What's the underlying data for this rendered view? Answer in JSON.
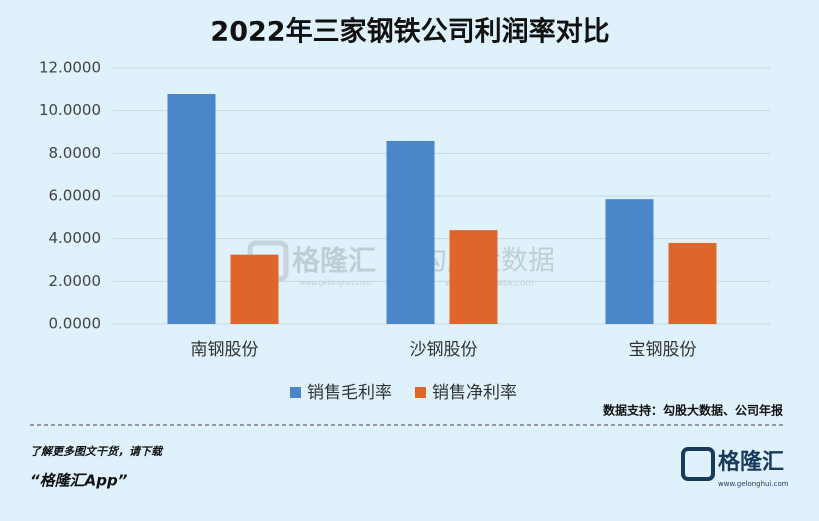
{
  "chart_data": {
    "type": "bar",
    "title": "2022年三家钢铁公司利润率对比",
    "categories": [
      "南钢股份",
      "沙钢股份",
      "宝钢股份"
    ],
    "series": [
      {
        "name": "销售毛利率",
        "color": "#4a86c8",
        "values": [
          10.78,
          8.58,
          5.85
        ]
      },
      {
        "name": "销售净利率",
        "color": "#e0652a",
        "values": [
          3.25,
          4.4,
          3.8
        ]
      }
    ],
    "ylim": [
      0,
      12
    ],
    "yticks": [
      {
        "value": 0,
        "label": "0.0000"
      },
      {
        "value": 2,
        "label": "2.0000"
      },
      {
        "value": 4,
        "label": "4.0000"
      },
      {
        "value": 6,
        "label": "6.0000"
      },
      {
        "value": 8,
        "label": "8.0000"
      },
      {
        "value": 10,
        "label": "10.0000"
      },
      {
        "value": 12,
        "label": "12.0000"
      }
    ],
    "grid": true,
    "legend": "bottom",
    "source": "数据支持：勾股大数据、公司年报"
  },
  "watermark": {
    "brand": "格隆汇",
    "brand_url": "www.gelonghui.com",
    "partner": "勾股大数据",
    "partner_url": "www.gogudata.com"
  },
  "footer": {
    "prompt": "了解更多图文干货，请下载",
    "app": "“格隆汇App”",
    "logo": "格隆汇",
    "logo_url": "www.gelonghui.com"
  }
}
